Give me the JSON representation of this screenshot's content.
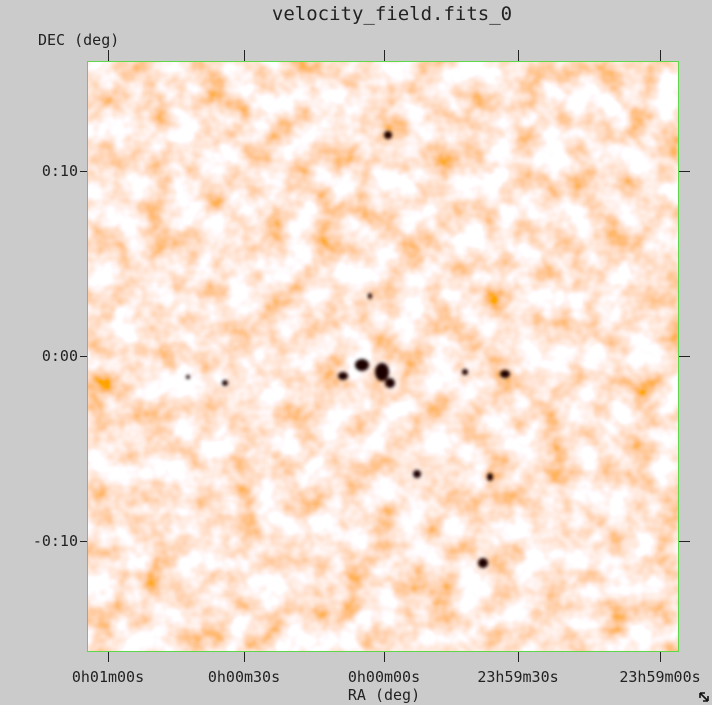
{
  "title": "velocity_field.fits_0",
  "y_axis": {
    "label": "DEC (deg)",
    "ticks": [
      "0:10",
      "0:00",
      "-0:10"
    ]
  },
  "x_axis": {
    "label": "RA (deg)",
    "ticks": [
      "0h01m00s",
      "0h00m30s",
      "0h00m00s",
      "23h59m30s",
      "23h59m00s"
    ]
  }
}
